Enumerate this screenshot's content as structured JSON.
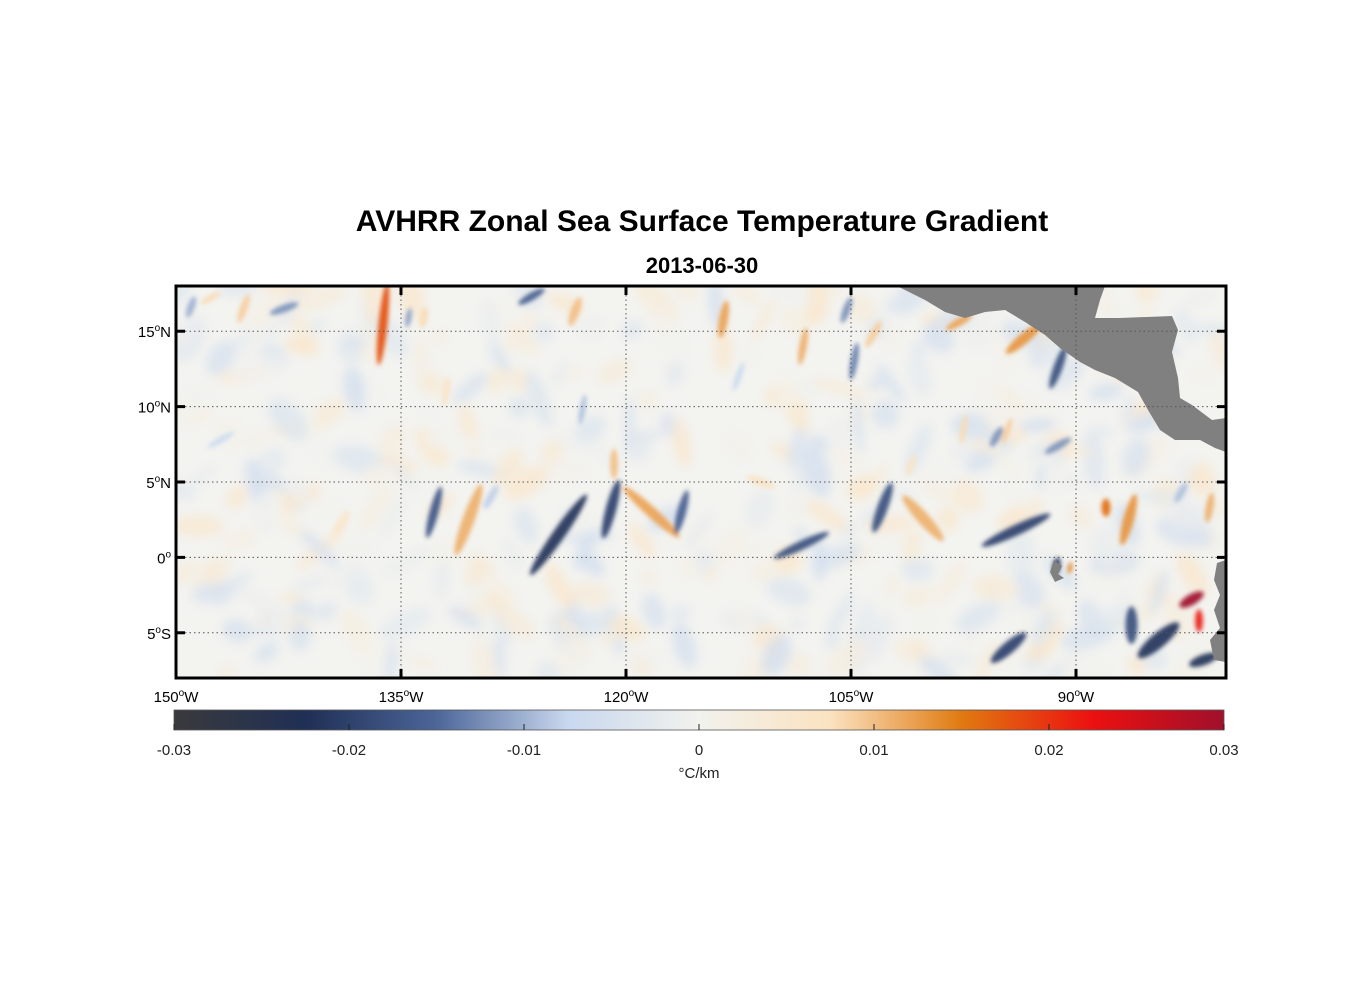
{
  "figure": {
    "title": "AVHRR Zonal Sea Surface Temperature Gradient",
    "subtitle": "2013-06-30"
  },
  "map": {
    "lon_range": [
      -150,
      -80
    ],
    "lat_range": [
      -8,
      18
    ],
    "land_color": "#808080",
    "lon_ticks": [
      {
        "value": -150,
        "num": "150",
        "hemi": "W"
      },
      {
        "value": -135,
        "num": "135",
        "hemi": "W"
      },
      {
        "value": -120,
        "num": "120",
        "hemi": "W"
      },
      {
        "value": -105,
        "num": "105",
        "hemi": "W"
      },
      {
        "value": -90,
        "num": "90",
        "hemi": "W"
      }
    ],
    "lat_ticks": [
      {
        "value": 15,
        "num": "15",
        "hemi": "N"
      },
      {
        "value": 10,
        "num": "10",
        "hemi": "N"
      },
      {
        "value": 5,
        "num": "5",
        "hemi": "N"
      },
      {
        "value": 0,
        "num": "0",
        "hemi": ""
      },
      {
        "value": -5,
        "num": "5",
        "hemi": "S"
      }
    ],
    "grid": true,
    "grid_style": "dotted"
  },
  "colorbar": {
    "range": [
      -0.03,
      0.03
    ],
    "ticks": [
      {
        "value": -0.03,
        "label": "-0.03"
      },
      {
        "value": -0.02,
        "label": "-0.02"
      },
      {
        "value": -0.01,
        "label": "-0.01"
      },
      {
        "value": 0,
        "label": "0"
      },
      {
        "value": 0.01,
        "label": "0.01"
      },
      {
        "value": 0.02,
        "label": "0.02"
      },
      {
        "value": 0.03,
        "label": "0.03"
      }
    ],
    "label": "°C/km",
    "colors": [
      "#3a3a3c",
      "#1f2f55",
      "#4c6699",
      "#c8d8ee",
      "#f2f2ee",
      "#fbe2c0",
      "#e07a10",
      "#ec1010",
      "#a0102c"
    ]
  },
  "features": {
    "positive": [
      {
        "lon": -130.5,
        "lat": 2.5,
        "len": 5.0,
        "angle": 70,
        "w": 0.8,
        "v": 0.011
      },
      {
        "lon": -118.3,
        "lat": 3.0,
        "len": 5.0,
        "angle": -42,
        "w": 0.7,
        "v": 0.012
      },
      {
        "lon": -100.2,
        "lat": 2.6,
        "len": 4.0,
        "angle": -48,
        "w": 0.8,
        "v": 0.011
      },
      {
        "lon": -86.5,
        "lat": 2.5,
        "len": 3.5,
        "angle": 75,
        "w": 0.7,
        "v": 0.013
      },
      {
        "lon": -88.0,
        "lat": 3.3,
        "len": 1.2,
        "angle": 90,
        "w": 0.6,
        "v": 0.016
      },
      {
        "lon": -136.2,
        "lat": 15.5,
        "len": 5.5,
        "angle": 84,
        "w": 0.6,
        "v": 0.018
      },
      {
        "lon": -133.5,
        "lat": 15.9,
        "len": 1.4,
        "angle": 80,
        "w": 0.5,
        "v": 0.008
      },
      {
        "lon": -120.8,
        "lat": 6.2,
        "len": 2.0,
        "angle": 90,
        "w": 0.5,
        "v": 0.01
      },
      {
        "lon": -123.4,
        "lat": 16.3,
        "len": 2.0,
        "angle": 70,
        "w": 0.6,
        "v": 0.01
      },
      {
        "lon": -113.5,
        "lat": 15.8,
        "len": 2.5,
        "angle": 80,
        "w": 0.6,
        "v": 0.012
      },
      {
        "lon": -108.2,
        "lat": 14.0,
        "len": 2.5,
        "angle": 80,
        "w": 0.5,
        "v": 0.011
      },
      {
        "lon": -97.8,
        "lat": 15.6,
        "len": 2.0,
        "angle": 30,
        "w": 0.5,
        "v": 0.012
      },
      {
        "lon": -93.5,
        "lat": 14.5,
        "len": 3.0,
        "angle": 40,
        "w": 0.7,
        "v": 0.013
      },
      {
        "lon": -103.5,
        "lat": 14.8,
        "len": 2.0,
        "angle": 60,
        "w": 0.5,
        "v": 0.009
      },
      {
        "lon": -145.5,
        "lat": 16.5,
        "len": 2.0,
        "angle": 70,
        "w": 0.5,
        "v": 0.009
      },
      {
        "lon": -147.7,
        "lat": 17.2,
        "len": 1.5,
        "angle": 30,
        "w": 0.4,
        "v": 0.008
      },
      {
        "lon": -97.5,
        "lat": 8.5,
        "len": 2.0,
        "angle": 80,
        "w": 0.4,
        "v": 0.008
      },
      {
        "lon": -94.6,
        "lat": 8.4,
        "len": 1.8,
        "angle": 70,
        "w": 0.4,
        "v": 0.009
      },
      {
        "lon": -111.0,
        "lat": 5.0,
        "len": 2.0,
        "angle": -20,
        "w": 0.5,
        "v": 0.007
      },
      {
        "lon": -82.3,
        "lat": -2.8,
        "len": 1.8,
        "angle": 30,
        "w": 0.7,
        "v": 0.03
      },
      {
        "lon": -81.8,
        "lat": -4.2,
        "len": 1.5,
        "angle": 90,
        "w": 0.5,
        "v": 0.022
      },
      {
        "lon": -81.1,
        "lat": 3.3,
        "len": 2.0,
        "angle": 80,
        "w": 0.5,
        "v": 0.011
      },
      {
        "lon": -90.4,
        "lat": -0.7,
        "len": 0.8,
        "angle": 80,
        "w": 0.3,
        "v": 0.014
      },
      {
        "lon": -101.0,
        "lat": 6.1,
        "len": 1.5,
        "angle": 70,
        "w": 0.4,
        "v": 0.007
      },
      {
        "lon": -139.0,
        "lat": 2.2,
        "len": 2.0,
        "angle": 60,
        "w": 0.7,
        "v": 0.005
      },
      {
        "lon": -132.0,
        "lat": 11.0,
        "len": 2.0,
        "angle": 80,
        "w": 0.5,
        "v": 0.006
      }
    ],
    "negative": [
      {
        "lon": -124.5,
        "lat": 1.5,
        "len": 6.5,
        "angle": 55,
        "w": 0.8,
        "v": -0.022
      },
      {
        "lon": -121.0,
        "lat": 3.2,
        "len": 4.0,
        "angle": 75,
        "w": 0.7,
        "v": -0.02
      },
      {
        "lon": -132.8,
        "lat": 3.0,
        "len": 3.5,
        "angle": 75,
        "w": 0.6,
        "v": -0.017
      },
      {
        "lon": -116.3,
        "lat": 3.0,
        "len": 3.0,
        "angle": 75,
        "w": 0.6,
        "v": -0.016
      },
      {
        "lon": -108.3,
        "lat": 0.8,
        "len": 4.0,
        "angle": 25,
        "w": 0.6,
        "v": -0.018
      },
      {
        "lon": -102.9,
        "lat": 3.3,
        "len": 3.5,
        "angle": 70,
        "w": 0.7,
        "v": -0.018
      },
      {
        "lon": -94.0,
        "lat": 1.8,
        "len": 5.0,
        "angle": 25,
        "w": 0.7,
        "v": -0.02
      },
      {
        "lon": -91.3,
        "lat": -0.6,
        "len": 1.2,
        "angle": 80,
        "w": 0.5,
        "v": -0.022
      },
      {
        "lon": -94.5,
        "lat": -6.0,
        "len": 3.0,
        "angle": 40,
        "w": 0.8,
        "v": -0.02
      },
      {
        "lon": -84.5,
        "lat": -5.5,
        "len": 3.5,
        "angle": 40,
        "w": 1.0,
        "v": -0.022
      },
      {
        "lon": -86.3,
        "lat": -4.5,
        "len": 2.5,
        "angle": 90,
        "w": 0.8,
        "v": -0.018
      },
      {
        "lon": -81.5,
        "lat": -6.8,
        "len": 2.0,
        "angle": 20,
        "w": 0.7,
        "v": -0.022
      },
      {
        "lon": -91.2,
        "lat": 12.6,
        "len": 3.0,
        "angle": 70,
        "w": 0.6,
        "v": -0.018
      },
      {
        "lon": -126.3,
        "lat": 17.3,
        "len": 2.0,
        "angle": 30,
        "w": 0.5,
        "v": -0.016
      },
      {
        "lon": -134.5,
        "lat": 15.9,
        "len": 1.3,
        "angle": 80,
        "w": 0.4,
        "v": -0.011
      },
      {
        "lon": -104.8,
        "lat": 13.0,
        "len": 2.5,
        "angle": 80,
        "w": 0.5,
        "v": -0.013
      },
      {
        "lon": -105.3,
        "lat": 16.4,
        "len": 1.8,
        "angle": 70,
        "w": 0.5,
        "v": -0.012
      },
      {
        "lon": -142.8,
        "lat": 16.5,
        "len": 2.0,
        "angle": 20,
        "w": 0.5,
        "v": -0.012
      },
      {
        "lon": -149.0,
        "lat": 16.6,
        "len": 1.5,
        "angle": 70,
        "w": 0.5,
        "v": -0.01
      },
      {
        "lon": -91.2,
        "lat": 7.4,
        "len": 2.0,
        "angle": 30,
        "w": 0.5,
        "v": -0.012
      },
      {
        "lon": -95.3,
        "lat": 8.0,
        "len": 1.5,
        "angle": 60,
        "w": 0.5,
        "v": -0.012
      },
      {
        "lon": -122.9,
        "lat": 9.8,
        "len": 2.0,
        "angle": 80,
        "w": 0.4,
        "v": -0.009
      },
      {
        "lon": -147.0,
        "lat": 7.8,
        "len": 2.0,
        "angle": 30,
        "w": 0.4,
        "v": -0.007
      },
      {
        "lon": -129.0,
        "lat": 4.0,
        "len": 1.8,
        "angle": 60,
        "w": 0.5,
        "v": -0.008
      },
      {
        "lon": -112.5,
        "lat": 12.0,
        "len": 2.0,
        "angle": 70,
        "w": 0.4,
        "v": -0.007
      },
      {
        "lon": -83.0,
        "lat": 4.3,
        "len": 1.5,
        "angle": 60,
        "w": 0.5,
        "v": -0.009
      }
    ]
  }
}
